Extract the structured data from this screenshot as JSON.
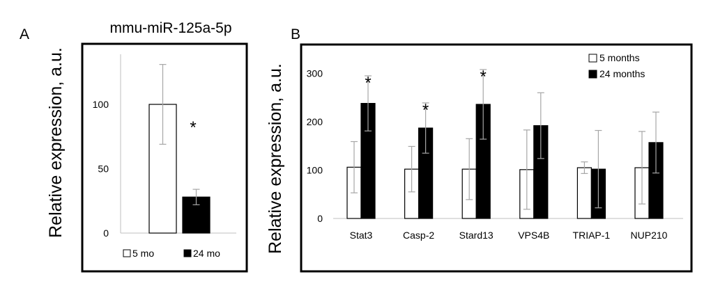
{
  "figure": {
    "panelA_letter": "A",
    "panelB_letter": "B"
  },
  "chart_data": [
    {
      "type": "bar",
      "title": "mmu-miR-125a-5p",
      "xlabel": "",
      "ylabel": "Relative expression, a.u.",
      "ylim": [
        0,
        150
      ],
      "yticks": [
        0,
        50,
        100
      ],
      "categories": [
        ""
      ],
      "series": [
        {
          "name": "5 mo",
          "color": "#ffffff",
          "values": [
            100
          ],
          "errors": [
            31
          ]
        },
        {
          "name": "24 mo",
          "color": "#000000",
          "values": [
            28
          ],
          "errors": [
            6
          ]
        }
      ],
      "annotations": [
        "*"
      ],
      "legend": "bottom"
    },
    {
      "type": "bar",
      "title": "",
      "xlabel": "",
      "ylabel": "Relative expression, a.u.",
      "ylim": [
        0,
        330
      ],
      "yticks": [
        0,
        100,
        200,
        300
      ],
      "categories": [
        "Stat3",
        "Casp-2",
        "Stard13",
        "VPS4B",
        "TRIAP-1",
        "NUP210"
      ],
      "series": [
        {
          "name": "5 months",
          "color": "#ffffff",
          "values": [
            106,
            102,
            102,
            101,
            105,
            105
          ],
          "errors": [
            53,
            47,
            63,
            82,
            12,
            75
          ]
        },
        {
          "name": "24 months",
          "color": "#000000",
          "values": [
            238,
            187,
            236,
            192,
            102,
            157
          ],
          "errors": [
            57,
            52,
            72,
            68,
            80,
            63
          ]
        }
      ],
      "annotations": [
        "*",
        "*",
        "*",
        "",
        "",
        ""
      ],
      "legend": "top-right"
    }
  ]
}
